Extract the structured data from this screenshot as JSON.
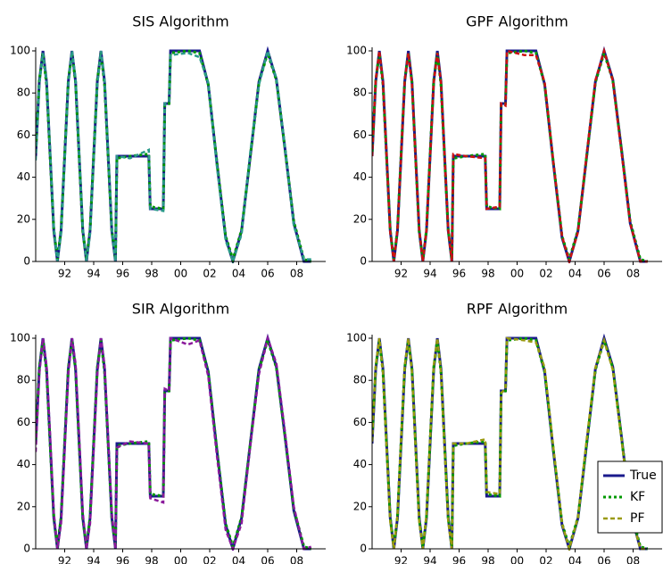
{
  "chart_data": [
    {
      "type": "line",
      "title": "SIS Algorithm",
      "x": [
        90,
        90.25,
        90.5,
        90.75,
        91,
        91.25,
        91.5,
        91.75,
        92,
        92.25,
        92.5,
        92.75,
        93,
        93.25,
        93.5,
        93.75,
        94,
        94.25,
        94.5,
        94.75,
        95,
        95.25,
        95.5,
        95.6,
        96.5,
        97.8,
        97.9,
        98.8,
        98.9,
        99.2,
        99.3,
        100.5,
        101.3,
        101.9,
        102.5,
        103.1,
        103.6,
        104.2,
        104.8,
        105.4,
        106,
        106.6,
        107.2,
        107.8,
        108.5,
        109
      ],
      "xlim": [
        90,
        110
      ],
      "ylim": [
        0,
        100
      ],
      "xticks": [
        92,
        94,
        96,
        98,
        {
          "value": 100,
          "label": "00"
        },
        {
          "value": 102,
          "label": "02"
        },
        {
          "value": 104,
          "label": "04"
        },
        {
          "value": 106,
          "label": "06"
        },
        {
          "value": 108,
          "label": "08"
        }
      ],
      "yticks": [
        0,
        20,
        40,
        60,
        80,
        100
      ],
      "series": [
        {
          "name": "True",
          "color": "#1a1a8c",
          "values": [
            50,
            85.4,
            100,
            85.4,
            50,
            14.6,
            0,
            14.6,
            50,
            85.4,
            100,
            85.4,
            50,
            14.6,
            0,
            14.6,
            50,
            85.4,
            100,
            85.4,
            50,
            14.6,
            0,
            50,
            50,
            50,
            25,
            25,
            75,
            75,
            100,
            100,
            100,
            84.1,
            46.6,
            11.3,
            0,
            14.6,
            50,
            85.4,
            100,
            86.4,
            53.1,
            18.2,
            0,
            0
          ]
        },
        {
          "name": "KF",
          "color": "#009900",
          "values": [
            52,
            86,
            99,
            84,
            49,
            15,
            1,
            15,
            51,
            86,
            99,
            85,
            49,
            14,
            1,
            15,
            51,
            86,
            99,
            84,
            49,
            15,
            1,
            49,
            50,
            51,
            26,
            25,
            74,
            75,
            99,
            100,
            99,
            84,
            47,
            12,
            1,
            15,
            50,
            85,
            99,
            86,
            53,
            19,
            1,
            0
          ]
        },
        {
          "name": "PF",
          "color": "#2a9a8a",
          "values": [
            48,
            84,
            99,
            86,
            52,
            16,
            0,
            13,
            48,
            84,
            100,
            87,
            51,
            16,
            0,
            13,
            48,
            84,
            100,
            86,
            51,
            16,
            0,
            50,
            49,
            53,
            25,
            24,
            75,
            76,
            98,
            99,
            97,
            85,
            45,
            10,
            0,
            13,
            52,
            84,
            100,
            87,
            54,
            17,
            1,
            1
          ]
        }
      ]
    },
    {
      "type": "line",
      "title": "GPF Algorithm",
      "x": [
        90,
        90.25,
        90.5,
        90.75,
        91,
        91.25,
        91.5,
        91.75,
        92,
        92.25,
        92.5,
        92.75,
        93,
        93.25,
        93.5,
        93.75,
        94,
        94.25,
        94.5,
        94.75,
        95,
        95.25,
        95.5,
        95.6,
        96.5,
        97.8,
        97.9,
        98.8,
        98.9,
        99.2,
        99.3,
        100.5,
        101.3,
        101.9,
        102.5,
        103.1,
        103.6,
        104.2,
        104.8,
        105.4,
        106,
        106.6,
        107.2,
        107.8,
        108.5,
        109
      ],
      "xlim": [
        90,
        110
      ],
      "ylim": [
        0,
        100
      ],
      "xticks": [
        92,
        94,
        96,
        98,
        {
          "value": 100,
          "label": "00"
        },
        {
          "value": 102,
          "label": "02"
        },
        {
          "value": 104,
          "label": "04"
        },
        {
          "value": 106,
          "label": "06"
        },
        {
          "value": 108,
          "label": "08"
        }
      ],
      "yticks": [
        0,
        20,
        40,
        60,
        80,
        100
      ],
      "series": [
        {
          "name": "True",
          "color": "#1a1a8c",
          "values": [
            50,
            85.4,
            100,
            85.4,
            50,
            14.6,
            0,
            14.6,
            50,
            85.4,
            100,
            85.4,
            50,
            14.6,
            0,
            14.6,
            50,
            85.4,
            100,
            85.4,
            50,
            14.6,
            0,
            50,
            50,
            50,
            25,
            25,
            75,
            75,
            100,
            100,
            100,
            84.1,
            46.6,
            11.3,
            0,
            14.6,
            50,
            85.4,
            100,
            86.4,
            53.1,
            18.2,
            0,
            0
          ]
        },
        {
          "name": "KF",
          "color": "#009900",
          "values": [
            52,
            86,
            99,
            84,
            49,
            15,
            1,
            15,
            51,
            86,
            99,
            85,
            49,
            14,
            1,
            15,
            51,
            86,
            99,
            84,
            49,
            15,
            1,
            49,
            50,
            51,
            26,
            25,
            74,
            75,
            99,
            100,
            99,
            84,
            47,
            12,
            1,
            15,
            50,
            85,
            99,
            86,
            53,
            19,
            1,
            0
          ]
        },
        {
          "name": "PF",
          "color": "#cc1111",
          "values": [
            50,
            86,
            100,
            85,
            50,
            14,
            0,
            15,
            50,
            86,
            99,
            84,
            49,
            15,
            0,
            15,
            50,
            85,
            99,
            85,
            50,
            15,
            0,
            51,
            50,
            49,
            25,
            26,
            75,
            74,
            100,
            98,
            98,
            85,
            47,
            12,
            0,
            14,
            51,
            86,
            100,
            86,
            52,
            18,
            0,
            0
          ]
        }
      ]
    },
    {
      "type": "line",
      "title": "SIR Algorithm",
      "x": [
        90,
        90.25,
        90.5,
        90.75,
        91,
        91.25,
        91.5,
        91.75,
        92,
        92.25,
        92.5,
        92.75,
        93,
        93.25,
        93.5,
        93.75,
        94,
        94.25,
        94.5,
        94.75,
        95,
        95.25,
        95.5,
        95.6,
        96.5,
        97.8,
        97.9,
        98.8,
        98.9,
        99.2,
        99.3,
        100.5,
        101.3,
        101.9,
        102.5,
        103.1,
        103.6,
        104.2,
        104.8,
        105.4,
        106,
        106.6,
        107.2,
        107.8,
        108.5,
        109
      ],
      "xlim": [
        90,
        110
      ],
      "ylim": [
        0,
        100
      ],
      "xticks": [
        92,
        94,
        96,
        98,
        {
          "value": 100,
          "label": "00"
        },
        {
          "value": 102,
          "label": "02"
        },
        {
          "value": 104,
          "label": "04"
        },
        {
          "value": 106,
          "label": "06"
        },
        {
          "value": 108,
          "label": "08"
        }
      ],
      "yticks": [
        0,
        20,
        40,
        60,
        80,
        100
      ],
      "series": [
        {
          "name": "True",
          "color": "#1a1a8c",
          "values": [
            50,
            85.4,
            100,
            85.4,
            50,
            14.6,
            0,
            14.6,
            50,
            85.4,
            100,
            85.4,
            50,
            14.6,
            0,
            14.6,
            50,
            85.4,
            100,
            85.4,
            50,
            14.6,
            0,
            50,
            50,
            50,
            25,
            25,
            75,
            75,
            100,
            100,
            100,
            84.1,
            46.6,
            11.3,
            0,
            14.6,
            50,
            85.4,
            100,
            86.4,
            53.1,
            18.2,
            0,
            0
          ]
        },
        {
          "name": "KF",
          "color": "#009900",
          "values": [
            52,
            86,
            99,
            84,
            49,
            15,
            1,
            15,
            51,
            86,
            99,
            85,
            49,
            14,
            1,
            15,
            51,
            86,
            99,
            84,
            49,
            15,
            1,
            49,
            50,
            51,
            26,
            25,
            74,
            75,
            99,
            100,
            99,
            84,
            47,
            12,
            1,
            15,
            50,
            85,
            99,
            86,
            53,
            19,
            1,
            0
          ]
        },
        {
          "name": "PF",
          "color": "#8b1a9b",
          "values": [
            46,
            83,
            100,
            87,
            53,
            17,
            0,
            12,
            47,
            83,
            100,
            88,
            53,
            17,
            0,
            12,
            47,
            83,
            100,
            87,
            52,
            17,
            0,
            48,
            51,
            50,
            24,
            22,
            76,
            75,
            100,
            97,
            99,
            82,
            44,
            9,
            0,
            12,
            49,
            83,
            100,
            88,
            55,
            20,
            0,
            1
          ]
        }
      ]
    },
    {
      "type": "line",
      "title": "RPF Algorithm",
      "x": [
        90,
        90.25,
        90.5,
        90.75,
        91,
        91.25,
        91.5,
        91.75,
        92,
        92.25,
        92.5,
        92.75,
        93,
        93.25,
        93.5,
        93.75,
        94,
        94.25,
        94.5,
        94.75,
        95,
        95.25,
        95.5,
        95.6,
        96.5,
        97.8,
        97.9,
        98.8,
        98.9,
        99.2,
        99.3,
        100.5,
        101.3,
        101.9,
        102.5,
        103.1,
        103.6,
        104.2,
        104.8,
        105.4,
        106,
        106.6,
        107.2,
        107.8,
        108.5,
        109
      ],
      "xlim": [
        90,
        110
      ],
      "ylim": [
        0,
        100
      ],
      "xticks": [
        92,
        94,
        96,
        98,
        {
          "value": 100,
          "label": "00"
        },
        {
          "value": 102,
          "label": "02"
        },
        {
          "value": 104,
          "label": "04"
        },
        {
          "value": 106,
          "label": "06"
        },
        {
          "value": 108,
          "label": "08"
        }
      ],
      "yticks": [
        0,
        20,
        40,
        60,
        80,
        100
      ],
      "legend": "lower right",
      "series": [
        {
          "name": "True",
          "color": "#1a1a8c",
          "values": [
            50,
            85.4,
            100,
            85.4,
            50,
            14.6,
            0,
            14.6,
            50,
            85.4,
            100,
            85.4,
            50,
            14.6,
            0,
            14.6,
            50,
            85.4,
            100,
            85.4,
            50,
            14.6,
            0,
            50,
            50,
            50,
            25,
            25,
            75,
            75,
            100,
            100,
            100,
            84.1,
            46.6,
            11.3,
            0,
            14.6,
            50,
            85.4,
            100,
            86.4,
            53.1,
            18.2,
            0,
            0
          ]
        },
        {
          "name": "KF",
          "color": "#009900",
          "values": [
            52,
            86,
            99,
            84,
            49,
            15,
            1,
            15,
            51,
            86,
            99,
            85,
            49,
            14,
            1,
            15,
            51,
            86,
            99,
            84,
            49,
            15,
            1,
            49,
            50,
            51,
            26,
            25,
            74,
            75,
            99,
            100,
            99,
            84,
            47,
            12,
            1,
            15,
            50,
            85,
            99,
            86,
            53,
            19,
            1,
            0
          ]
        },
        {
          "name": "PF",
          "color": "#9a9a10",
          "values": [
            51,
            87,
            100,
            84,
            48,
            13,
            0,
            16,
            52,
            87,
            100,
            84,
            48,
            13,
            0,
            16,
            52,
            87,
            100,
            84,
            48,
            13,
            0,
            50,
            50,
            52,
            27,
            26,
            74,
            76,
            100,
            99,
            98,
            86,
            48,
            12,
            0,
            15,
            52,
            86,
            99,
            85,
            52,
            18,
            0,
            0
          ]
        }
      ]
    }
  ]
}
